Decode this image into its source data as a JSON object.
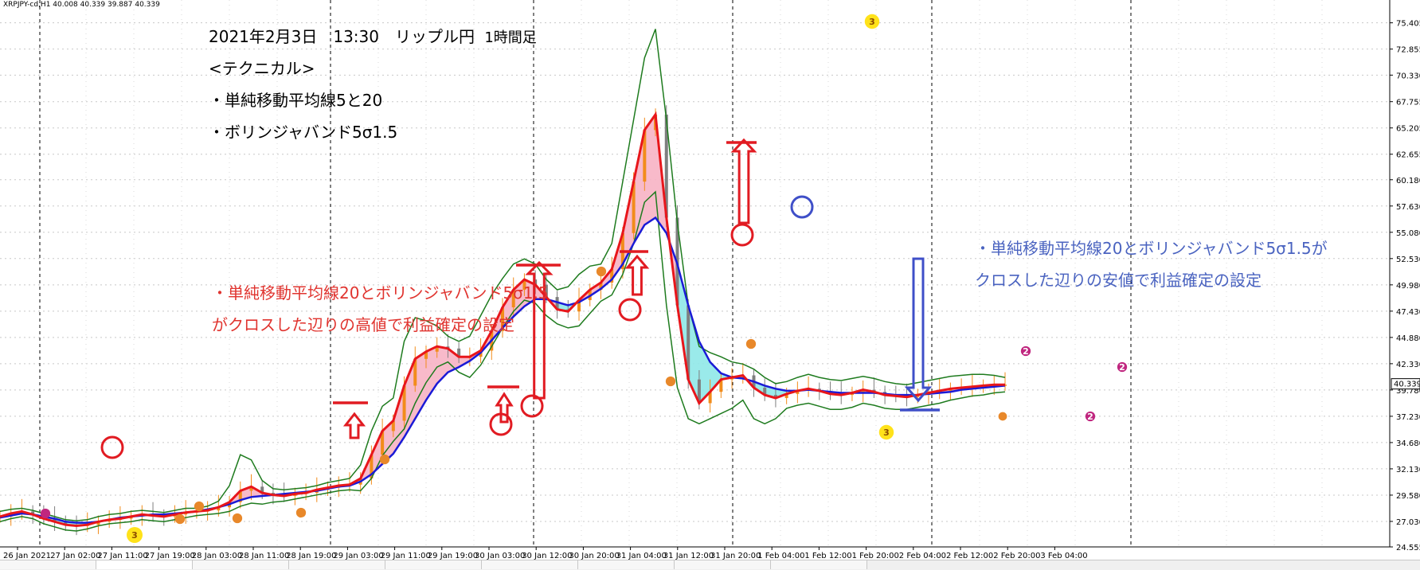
{
  "chart_header": "XRPJPY-cd,H1  40.008 40.339 39.887 40.339",
  "annotations": {
    "date_line": "2021年2月3日　13:30　リップル円",
    "timeframe": "1時間足",
    "technical_heading": "<テクニカル>",
    "technical_1": "・単純移動平均線5と20",
    "technical_2": "・ボリンジャバンド5σ1.5",
    "red_note_1": "・単純移動平均線20とボリンジャバンド5σ1.5",
    "red_note_2": "がクロスした辺りの高値で利益確定の設定",
    "blue_note_1": "・単純移動平均線20とボリンジャバンド5σ1.5が",
    "blue_note_2": "クロスした辺りの安値で利益確定の設定"
  },
  "colors": {
    "sma5": "#e8161b",
    "sma20": "#1a1ad6",
    "band": "#1e7b1e",
    "pink_fill": "#f7b3c4",
    "cyan_fill": "#8fe8e8",
    "marker_red": "#e11b22",
    "marker_blue": "#3f4fc8",
    "candle_up": "#f28c1b",
    "candle_down": "#7f7f7f",
    "zone_orange": "#e8882a",
    "zone_magenta": "#c0267f",
    "zone_yellow": "#ffe21a",
    "current_price_bg": "#ffffff"
  },
  "chart_data": {
    "type": "line",
    "ylim": [
      24.555,
      77.0
    ],
    "yticks": [
      "75.405",
      "72.855",
      "70.330",
      "67.755",
      "65.205",
      "62.655",
      "60.180",
      "57.630",
      "55.080",
      "52.530",
      "49.980",
      "47.430",
      "44.880",
      "42.330",
      "39.780",
      "37.230",
      "34.680",
      "32.130",
      "29.580",
      "27.030",
      "24.555"
    ],
    "current_price": "40.339",
    "xtick_labels": [
      "26 Jan 2021",
      "27 Jan 02:00",
      "27 Jan 11:00",
      "27 Jan 19:00",
      "28 Jan 03:00",
      "28 Jan 11:00",
      "28 Jan 19:00",
      "29 Jan 03:00",
      "29 Jan 11:00",
      "29 Jan 19:00",
      "30 Jan 03:00",
      "30 Jan 12:00",
      "30 Jan 20:00",
      "31 Jan 04:00",
      "31 Jan 12:00",
      "31 Jan 20:00",
      "1 Feb 04:00",
      "1 Feb 12:00",
      "1 Feb 20:00",
      "2 Feb 04:00",
      "2 Feb 12:00",
      "2 Feb 20:00",
      "3 Feb 04:00"
    ],
    "x": [
      0,
      2,
      4,
      6,
      8,
      10,
      12,
      14,
      16,
      18,
      20,
      22,
      24,
      26,
      28,
      30,
      32,
      34,
      36,
      38,
      40,
      42,
      44,
      46,
      48,
      50,
      52,
      54,
      56,
      58,
      60,
      62,
      64,
      66,
      68,
      70,
      72,
      74,
      76,
      78,
      80,
      82,
      84,
      86,
      88,
      90,
      92,
      94,
      96,
      98,
      100,
      102,
      104,
      106,
      108,
      110,
      112,
      114,
      116,
      118,
      120,
      122,
      124,
      126,
      128,
      130,
      132,
      134,
      136,
      138,
      140,
      142,
      144,
      146,
      148,
      150,
      152,
      154,
      156,
      158,
      160,
      162,
      164,
      166,
      168,
      170,
      172,
      174,
      176,
      178,
      180,
      182,
      184
    ],
    "series": [
      {
        "name": "SMA5",
        "values": [
          27.5,
          27.8,
          28.0,
          27.7,
          27.3,
          27.0,
          26.7,
          26.6,
          26.7,
          27.0,
          27.2,
          27.3,
          27.5,
          27.7,
          27.6,
          27.5,
          27.7,
          27.9,
          28.0,
          28.1,
          28.4,
          28.9,
          30.0,
          30.4,
          29.8,
          29.6,
          29.5,
          29.7,
          29.8,
          30.1,
          30.3,
          30.5,
          30.6,
          31.2,
          33.5,
          35.8,
          36.8,
          40.2,
          42.8,
          43.5,
          44.0,
          43.8,
          43.0,
          43.0,
          43.6,
          45.5,
          47.8,
          49.5,
          50.5,
          50.0,
          48.8,
          47.6,
          47.4,
          48.5,
          49.5,
          50.2,
          51.5,
          55.0,
          60.0,
          65.0,
          66.5,
          56.5,
          48.0,
          40.8,
          38.5,
          39.6,
          40.8,
          41.0,
          41.2,
          40.0,
          39.3,
          39.0,
          39.4,
          39.7,
          39.9,
          39.7,
          39.4,
          39.3,
          39.5,
          39.8,
          39.6,
          39.3,
          39.2,
          39.1,
          39.3,
          39.5,
          39.7,
          39.9,
          40.0,
          40.1,
          40.2,
          40.3,
          40.3
        ]
      },
      {
        "name": "SMA20",
        "values": [
          27.4,
          27.6,
          27.8,
          27.7,
          27.5,
          27.3,
          27.0,
          26.9,
          26.9,
          27.0,
          27.2,
          27.4,
          27.5,
          27.6,
          27.7,
          27.7,
          27.8,
          27.9,
          28.0,
          28.2,
          28.4,
          28.7,
          29.1,
          29.4,
          29.5,
          29.6,
          29.7,
          29.8,
          29.9,
          30.0,
          30.2,
          30.4,
          30.5,
          30.9,
          31.6,
          32.6,
          33.6,
          35.2,
          37.0,
          38.8,
          40.4,
          41.5,
          42.0,
          42.6,
          43.4,
          44.6,
          45.8,
          46.9,
          47.9,
          48.6,
          48.6,
          48.3,
          48.0,
          48.3,
          48.9,
          49.6,
          50.5,
          52.0,
          54.0,
          55.8,
          56.5,
          55.0,
          52.0,
          48.0,
          44.5,
          42.5,
          41.4,
          41.0,
          40.9,
          40.6,
          40.2,
          39.9,
          39.7,
          39.7,
          39.8,
          39.7,
          39.6,
          39.5,
          39.5,
          39.5,
          39.5,
          39.4,
          39.3,
          39.3,
          39.3,
          39.4,
          39.5,
          39.6,
          39.8,
          39.9,
          40.0,
          40.1,
          40.2
        ]
      },
      {
        "name": "BB Upper",
        "values": [
          28.0,
          28.2,
          28.3,
          28.1,
          27.8,
          27.5,
          27.2,
          27.1,
          27.2,
          27.5,
          27.7,
          27.8,
          28.0,
          28.1,
          28.0,
          27.9,
          28.1,
          28.3,
          28.3,
          28.5,
          29.0,
          30.5,
          33.5,
          33.0,
          31.0,
          30.2,
          30.1,
          30.2,
          30.3,
          30.5,
          30.8,
          31.0,
          31.2,
          32.5,
          35.8,
          38.2,
          39.0,
          44.5,
          46.8,
          46.5,
          46.0,
          45.0,
          44.5,
          45.0,
          47.0,
          49.0,
          50.6,
          52.0,
          52.5,
          52.0,
          50.5,
          49.5,
          49.8,
          51.0,
          51.8,
          52.0,
          54.0,
          60.0,
          66.0,
          72.0,
          74.8,
          66.0,
          56.0,
          48.0,
          44.0,
          43.4,
          43.0,
          42.5,
          42.3,
          41.8,
          41.0,
          40.4,
          40.6,
          41.0,
          41.3,
          41.0,
          40.8,
          40.7,
          40.9,
          41.1,
          40.9,
          40.6,
          40.4,
          40.3,
          40.5,
          40.7,
          40.9,
          41.1,
          41.2,
          41.3,
          41.3,
          41.2,
          41.0
        ]
      },
      {
        "name": "BB Lower",
        "values": [
          27.0,
          27.3,
          27.5,
          27.3,
          26.8,
          26.5,
          26.2,
          26.1,
          26.3,
          26.6,
          26.8,
          26.9,
          27.0,
          27.2,
          27.1,
          27.0,
          27.2,
          27.4,
          27.6,
          27.7,
          27.8,
          28.0,
          28.5,
          28.8,
          28.7,
          28.9,
          29.0,
          29.2,
          29.4,
          29.6,
          29.8,
          30.0,
          30.1,
          30.0,
          31.2,
          33.4,
          34.8,
          36.0,
          38.5,
          40.5,
          42.0,
          42.5,
          41.5,
          41.0,
          42.2,
          44.0,
          45.8,
          47.4,
          48.5,
          48.2,
          47.0,
          46.2,
          45.8,
          46.0,
          47.2,
          48.4,
          49.0,
          51.0,
          54.0,
          58.0,
          59.0,
          48.0,
          40.0,
          37.0,
          36.5,
          37.0,
          37.5,
          38.0,
          38.8,
          37.0,
          36.5,
          37.0,
          38.0,
          38.3,
          38.5,
          38.2,
          37.9,
          37.9,
          38.1,
          38.5,
          38.3,
          38.0,
          37.9,
          37.9,
          38.1,
          38.3,
          38.5,
          38.8,
          39.0,
          39.2,
          39.3,
          39.5,
          39.6
        ]
      }
    ]
  },
  "markers": {
    "red_circles": [
      [
        141,
        562
      ],
      [
        629,
        533
      ],
      [
        668,
        510
      ],
      [
        791,
        389
      ],
      [
        932,
        295
      ]
    ],
    "blue_circle": [
      1007,
      260
    ]
  }
}
